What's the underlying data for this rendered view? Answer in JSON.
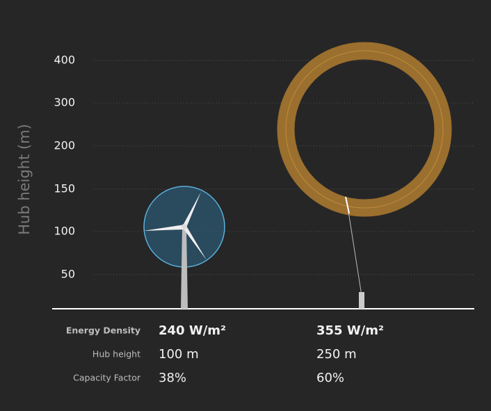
{
  "axis": {
    "label": "Hub height (m)",
    "ticks": [
      400,
      300,
      200,
      150,
      100,
      50
    ]
  },
  "table": {
    "rows": [
      [
        "Energy Density",
        "240 W/m²",
        "355 W/m²"
      ],
      [
        "Hub height",
        "100 m",
        "250 m"
      ],
      [
        "Capacity Factor",
        "38%",
        "60%"
      ]
    ]
  }
}
